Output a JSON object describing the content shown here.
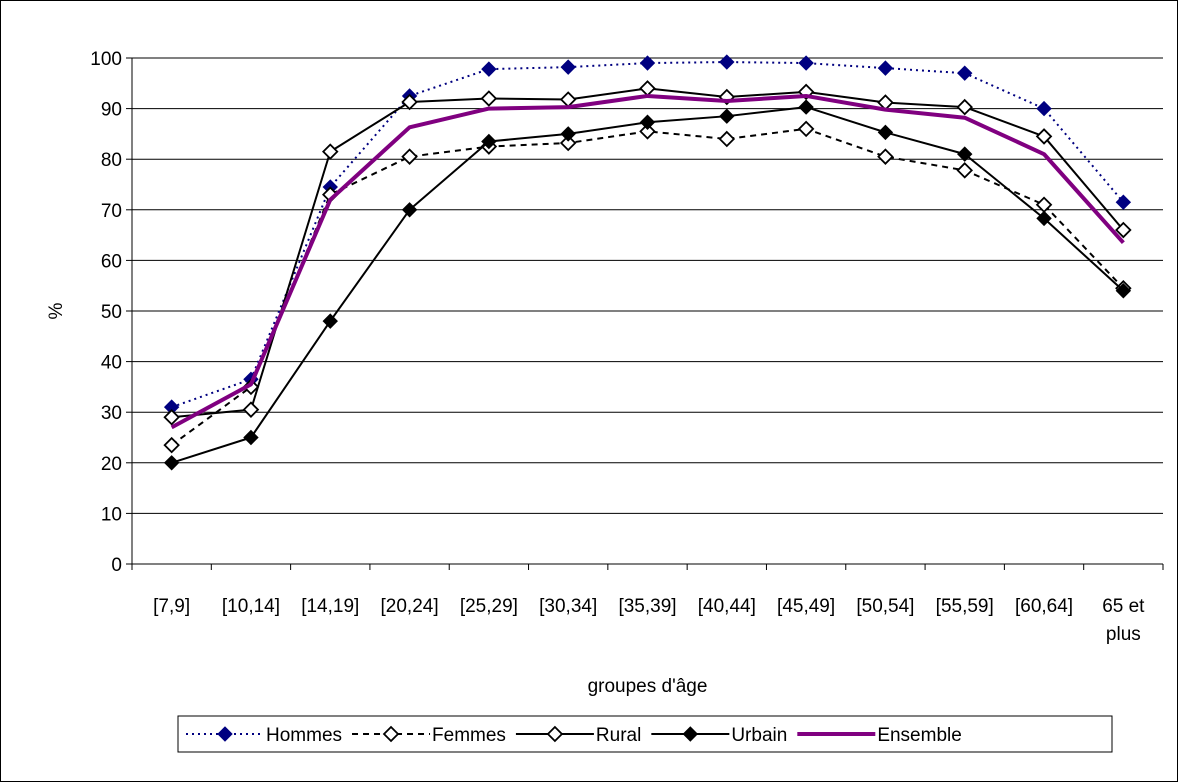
{
  "chart_data": {
    "type": "line",
    "title": "",
    "xlabel": "groupes d'âge",
    "ylabel": "%",
    "ylim": [
      0,
      100
    ],
    "yticks": [
      0,
      10,
      20,
      30,
      40,
      50,
      60,
      70,
      80,
      90,
      100
    ],
    "grid": true,
    "legend_position": "bottom",
    "categories": [
      [
        "[7,9]"
      ],
      [
        "[10,14]"
      ],
      [
        "[14,19]"
      ],
      [
        "[20,24]"
      ],
      [
        "[25,29]"
      ],
      [
        "[30,34]"
      ],
      [
        "[35,39]"
      ],
      [
        "[40,44]"
      ],
      [
        "[45,49]"
      ],
      [
        "[50,54]"
      ],
      [
        "[55,59]"
      ],
      [
        "[60,64]"
      ],
      [
        "65 et",
        "plus"
      ]
    ],
    "series": [
      {
        "name": "Hommes",
        "color": "#000080",
        "line_style": "dotted",
        "marker": "diamond-filled",
        "values": [
          31,
          36.5,
          74.5,
          92.5,
          97.8,
          98.2,
          99,
          99.2,
          99,
          98,
          97,
          90,
          71.5
        ]
      },
      {
        "name": "Femmes",
        "color": "#000000",
        "line_style": "dashed",
        "marker": "diamond-open",
        "values": [
          23.5,
          35,
          73,
          80.5,
          82.5,
          83.2,
          85.5,
          84,
          86,
          80.5,
          77.8,
          71,
          54.5
        ]
      },
      {
        "name": "Rural",
        "color": "#000000",
        "line_style": "solid",
        "marker": "diamond-open",
        "values": [
          29,
          30.5,
          81.5,
          91.3,
          92,
          91.8,
          94,
          92.3,
          93.3,
          91.2,
          90.3,
          84.5,
          66
        ]
      },
      {
        "name": "Urbain",
        "color": "#000000",
        "line_style": "solid",
        "marker": "diamond-filled",
        "values": [
          20,
          25,
          48,
          70,
          83.5,
          85,
          87.3,
          88.5,
          90.3,
          85.3,
          81,
          68.3,
          54
        ]
      },
      {
        "name": "Ensemble",
        "color": "#800080",
        "line_style": "thick",
        "marker": "none",
        "values": [
          27,
          35.5,
          72,
          86.3,
          90,
          90.3,
          92.5,
          91.5,
          92.5,
          89.8,
          88.2,
          81,
          63.5
        ]
      }
    ]
  }
}
